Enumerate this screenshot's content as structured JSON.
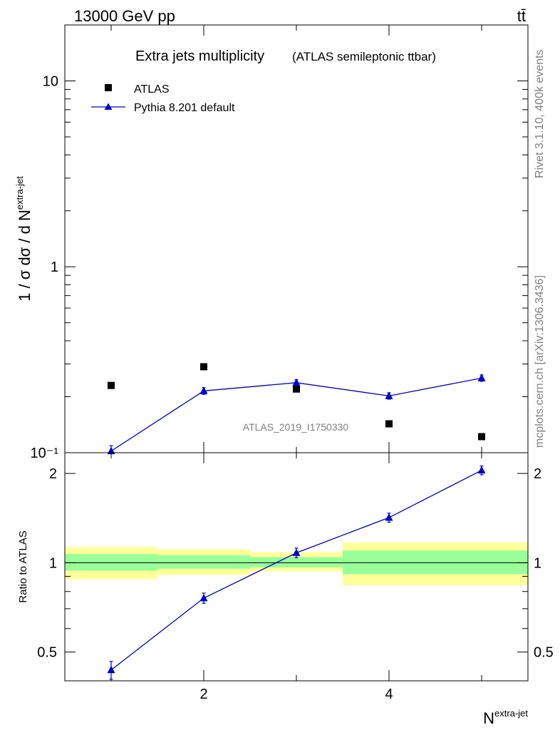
{
  "header": {
    "energy_label": "13000 GeV pp",
    "process_label": "tt̄"
  },
  "side_labels": {
    "rivet": "Rivet 3.1.10,  400k events",
    "source": "mcplots.cern.ch [arXiv:1306.3436]"
  },
  "colors": {
    "data": "#000000",
    "mc": "#0000cc",
    "band_inner": "#99ff99",
    "band_outer": "#ffff99"
  },
  "chart_data": [
    {
      "type": "scatter",
      "panel": "main",
      "title": "Extra jets multiplicity",
      "subtitle": "(ATLAS semileptonic ttbar)",
      "ylabel": "1 / σ dσ / d N",
      "ylabel_sup": "extra-jet",
      "yscale": "log",
      "ylim": [
        0.1,
        20
      ],
      "xlim": [
        0.5,
        5.5
      ],
      "ytick_labels": [
        "10⁻¹",
        "1",
        "10"
      ],
      "watermark": "ATLAS_2019_I1750330",
      "legend_position": "top-left",
      "series": [
        {
          "name": "ATLAS",
          "marker": "square",
          "x": [
            1,
            2,
            3,
            4,
            5
          ],
          "y": [
            0.23,
            0.29,
            0.22,
            0.143,
            0.122
          ]
        },
        {
          "name": "Pythia 8.201 default",
          "marker": "triangle",
          "line": true,
          "x": [
            1,
            2,
            3,
            4,
            5
          ],
          "y": [
            0.102,
            0.215,
            0.238,
            0.202,
            0.252
          ],
          "err": [
            0.007,
            0.009,
            0.009,
            0.008,
            0.01
          ]
        }
      ]
    },
    {
      "type": "line",
      "panel": "ratio",
      "ylabel": "Ratio to ATLAS",
      "xlabel": "N",
      "xlabel_sup": "extra-jet",
      "yscale": "log",
      "ylim": [
        0.4,
        2.35
      ],
      "xlim": [
        0.5,
        5.5
      ],
      "xticks": [
        2,
        4
      ],
      "yticks": [
        0.5,
        1,
        2
      ],
      "reference": 1,
      "uncertainty_bands": [
        {
          "x0": 0.5,
          "x1": 1.5,
          "inner": [
            0.94,
            1.07
          ],
          "outer": [
            0.88,
            1.13
          ]
        },
        {
          "x0": 1.5,
          "x1": 2.5,
          "inner": [
            0.955,
            1.06
          ],
          "outer": [
            0.91,
            1.11
          ]
        },
        {
          "x0": 2.5,
          "x1": 3.5,
          "inner": [
            0.965,
            1.045
          ],
          "outer": [
            0.935,
            1.085
          ]
        },
        {
          "x0": 3.5,
          "x1": 5.5,
          "inner": [
            0.915,
            1.1
          ],
          "outer": [
            0.84,
            1.17
          ]
        }
      ],
      "series": [
        {
          "name": "Pythia 8.201 default",
          "marker": "triangle",
          "x": [
            1,
            2,
            3,
            4,
            5
          ],
          "y": [
            0.435,
            0.76,
            1.08,
            1.42,
            2.05
          ],
          "err": [
            0.03,
            0.03,
            0.04,
            0.05,
            0.07
          ]
        }
      ]
    }
  ]
}
